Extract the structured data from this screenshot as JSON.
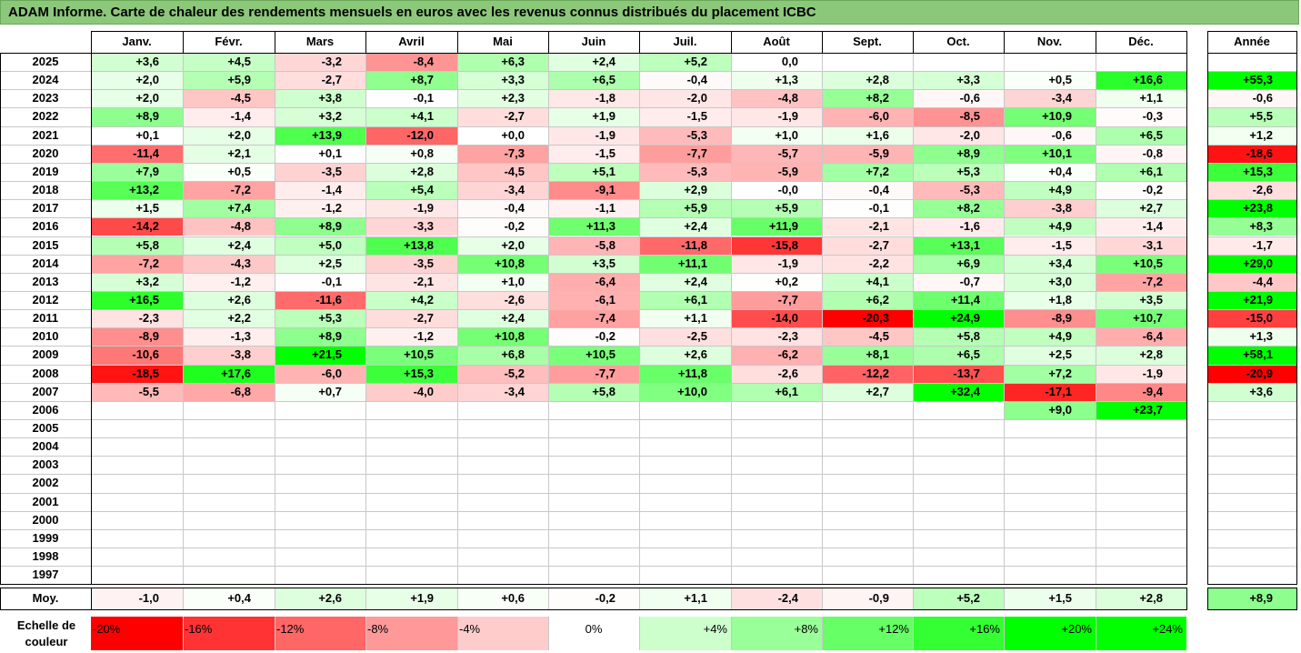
{
  "title": "ADAM Informe. Carte de chaleur des rendements mensuels en euros avec les revenus connus distribués du placement ICBC",
  "months": [
    "Janv.",
    "Févr.",
    "Mars",
    "Avril",
    "Mai",
    "Juin",
    "Juil.",
    "Août",
    "Sept.",
    "Oct.",
    "Nov.",
    "Déc."
  ],
  "year_header": "Année",
  "avg_label": "Moy.",
  "scale_label": "Echelle de couleur",
  "chart_data": {
    "type": "heatmap",
    "title": "ADAM Informe. Carte de chaleur des rendements mensuels en euros avec les revenus connus distribués du placement ICBC",
    "columns": [
      "Janv.",
      "Févr.",
      "Mars",
      "Avril",
      "Mai",
      "Juin",
      "Juil.",
      "Août",
      "Sept.",
      "Oct.",
      "Nov.",
      "Déc.",
      "Année"
    ],
    "rows": [
      {
        "year": "2025",
        "values": [
          "+3,6",
          "+4,5",
          "-3,2",
          "-8,4",
          "+6,3",
          "+2,4",
          "+5,2",
          "0,0",
          "",
          "",
          "",
          ""
        ],
        "annual": ""
      },
      {
        "year": "2024",
        "values": [
          "+2,0",
          "+5,9",
          "-2,7",
          "+8,7",
          "+3,3",
          "+6,5",
          "-0,4",
          "+1,3",
          "+2,8",
          "+3,3",
          "+0,5",
          "+16,6"
        ],
        "annual": "+55,3"
      },
      {
        "year": "2023",
        "values": [
          "+2,0",
          "-4,5",
          "+3,8",
          "-0,1",
          "+2,3",
          "-1,8",
          "-2,0",
          "-4,8",
          "+8,2",
          "-0,6",
          "-3,4",
          "+1,1"
        ],
        "annual": "-0,6"
      },
      {
        "year": "2022",
        "values": [
          "+8,9",
          "-1,4",
          "+3,2",
          "+4,1",
          "-2,7",
          "+1,9",
          "-1,5",
          "-1,9",
          "-6,0",
          "-8,5",
          "+10,9",
          "-0,3"
        ],
        "annual": "+5,5"
      },
      {
        "year": "2021",
        "values": [
          "+0,1",
          "+2,0",
          "+13,9",
          "-12,0",
          "+0,0",
          "-1,9",
          "-5,3",
          "+1,0",
          "+1,6",
          "-2,0",
          "-0,6",
          "+6,5"
        ],
        "annual": "+1,2"
      },
      {
        "year": "2020",
        "values": [
          "-11,4",
          "+2,1",
          "+0,1",
          "+0,8",
          "-7,3",
          "-1,5",
          "-7,7",
          "-5,7",
          "-5,9",
          "+8,9",
          "+10,1",
          "-0,8"
        ],
        "annual": "-18,6"
      },
      {
        "year": "2019",
        "values": [
          "+7,9",
          "+0,5",
          "-3,5",
          "+2,8",
          "-4,5",
          "+5,1",
          "-5,3",
          "-5,9",
          "+7,2",
          "+5,3",
          "+0,4",
          "+6,1"
        ],
        "annual": "+15,3"
      },
      {
        "year": "2018",
        "values": [
          "+13,2",
          "-7,2",
          "-1,4",
          "+5,4",
          "-3,4",
          "-9,1",
          "+2,9",
          "-0,0",
          "-0,4",
          "-5,3",
          "+4,9",
          "-0,2"
        ],
        "annual": "-2,6"
      },
      {
        "year": "2017",
        "values": [
          "+1,5",
          "+7,4",
          "-1,2",
          "-1,9",
          "-0,4",
          "-1,1",
          "+5,9",
          "+5,9",
          "-0,1",
          "+8,2",
          "-3,8",
          "+2,7"
        ],
        "annual": "+23,8"
      },
      {
        "year": "2016",
        "values": [
          "-14,2",
          "-4,8",
          "+8,9",
          "-3,3",
          "-0,2",
          "+11,3",
          "+2,4",
          "+11,9",
          "-2,1",
          "-1,6",
          "+4,9",
          "-1,4"
        ],
        "annual": "+8,3"
      },
      {
        "year": "2015",
        "values": [
          "+5,8",
          "+2,4",
          "+5,0",
          "+13,8",
          "+2,0",
          "-5,8",
          "-11,8",
          "-15,8",
          "-2,7",
          "+13,1",
          "-1,5",
          "-3,1"
        ],
        "annual": "-1,7"
      },
      {
        "year": "2014",
        "values": [
          "-7,2",
          "-4,3",
          "+2,5",
          "-3,5",
          "+10,8",
          "+3,5",
          "+11,1",
          "-1,9",
          "-2,2",
          "+6,9",
          "+3,4",
          "+10,5"
        ],
        "annual": "+29,0"
      },
      {
        "year": "2013",
        "values": [
          "+3,2",
          "-1,2",
          "-0,1",
          "-2,1",
          "+1,0",
          "-6,4",
          "+2,4",
          "+0,2",
          "+4,1",
          "-0,7",
          "+3,0",
          "-7,2"
        ],
        "annual": "-4,4"
      },
      {
        "year": "2012",
        "values": [
          "+16,5",
          "+2,6",
          "-11,6",
          "+4,2",
          "-2,6",
          "-6,1",
          "+6,1",
          "-7,7",
          "+6,2",
          "+11,4",
          "+1,8",
          "+3,5"
        ],
        "annual": "+21,9"
      },
      {
        "year": "2011",
        "values": [
          "-2,3",
          "+2,2",
          "+5,3",
          "-2,7",
          "+2,4",
          "-7,4",
          "+1,1",
          "-14,0",
          "-20,3",
          "+24,9",
          "-8,9",
          "+10,7"
        ],
        "annual": "-15,0"
      },
      {
        "year": "2010",
        "values": [
          "-8,9",
          "-1,3",
          "+8,9",
          "-1,2",
          "+10,8",
          "-0,2",
          "-2,5",
          "-2,3",
          "-4,5",
          "+5,8",
          "+4,9",
          "-6,4"
        ],
        "annual": "+1,3"
      },
      {
        "year": "2009",
        "values": [
          "-10,6",
          "-3,8",
          "+21,5",
          "+10,5",
          "+6,8",
          "+10,5",
          "+2,6",
          "-6,2",
          "+8,1",
          "+6,5",
          "+2,5",
          "+2,8"
        ],
        "annual": "+58,1"
      },
      {
        "year": "2008",
        "values": [
          "-18,5",
          "+17,6",
          "-6,0",
          "+15,3",
          "-5,2",
          "-7,7",
          "+11,8",
          "-2,6",
          "-12,2",
          "-13,7",
          "+7,2",
          "-1,9"
        ],
        "annual": "-20,9"
      },
      {
        "year": "2007",
        "values": [
          "-5,5",
          "-6,8",
          "+0,7",
          "-4,0",
          "-3,4",
          "+5,8",
          "+10,0",
          "+6,1",
          "+2,7",
          "+32,4",
          "-17,1",
          "-9,4"
        ],
        "annual": "+3,6"
      },
      {
        "year": "2006",
        "values": [
          "",
          "",
          "",
          "",
          "",
          "",
          "",
          "",
          "",
          "",
          "+9,0",
          "+23,7"
        ],
        "annual": ""
      },
      {
        "year": "2005",
        "values": [
          "",
          "",
          "",
          "",
          "",
          "",
          "",
          "",
          "",
          "",
          "",
          ""
        ],
        "annual": ""
      },
      {
        "year": "2004",
        "values": [
          "",
          "",
          "",
          "",
          "",
          "",
          "",
          "",
          "",
          "",
          "",
          ""
        ],
        "annual": ""
      },
      {
        "year": "2003",
        "values": [
          "",
          "",
          "",
          "",
          "",
          "",
          "",
          "",
          "",
          "",
          "",
          ""
        ],
        "annual": ""
      },
      {
        "year": "2002",
        "values": [
          "",
          "",
          "",
          "",
          "",
          "",
          "",
          "",
          "",
          "",
          "",
          ""
        ],
        "annual": ""
      },
      {
        "year": "2001",
        "values": [
          "",
          "",
          "",
          "",
          "",
          "",
          "",
          "",
          "",
          "",
          "",
          ""
        ],
        "annual": ""
      },
      {
        "year": "2000",
        "values": [
          "",
          "",
          "",
          "",
          "",
          "",
          "",
          "",
          "",
          "",
          "",
          ""
        ],
        "annual": ""
      },
      {
        "year": "1999",
        "values": [
          "",
          "",
          "",
          "",
          "",
          "",
          "",
          "",
          "",
          "",
          "",
          ""
        ],
        "annual": ""
      },
      {
        "year": "1998",
        "values": [
          "",
          "",
          "",
          "",
          "",
          "",
          "",
          "",
          "",
          "",
          "",
          ""
        ],
        "annual": ""
      },
      {
        "year": "1997",
        "values": [
          "",
          "",
          "",
          "",
          "",
          "",
          "",
          "",
          "",
          "",
          "",
          ""
        ],
        "annual": ""
      }
    ],
    "averages": [
      "-1,0",
      "+0,4",
      "+2,6",
      "+1,9",
      "+0,6",
      "-0,2",
      "+1,1",
      "-2,4",
      "-0,9",
      "+5,2",
      "+1,5",
      "+2,8"
    ],
    "average_annual": "+8,9",
    "color_scale": [
      {
        "label": "-20%",
        "value": -20
      },
      {
        "label": "-16%",
        "value": -16
      },
      {
        "label": "-12%",
        "value": -12
      },
      {
        "label": "-8%",
        "value": -8
      },
      {
        "label": "-4%",
        "value": -4
      },
      {
        "label": "0%",
        "value": 0
      },
      {
        "label": "+4%",
        "value": 4
      },
      {
        "label": "+8%",
        "value": 8
      },
      {
        "label": "+12%",
        "value": 12
      },
      {
        "label": "+16%",
        "value": 16
      },
      {
        "label": "+20%",
        "value": 20
      },
      {
        "label": "+24%",
        "value": 24
      }
    ],
    "colors": {
      "negative_max": "#ff0000",
      "neutral": "#ffffff",
      "positive_max": "#00ff00"
    }
  }
}
